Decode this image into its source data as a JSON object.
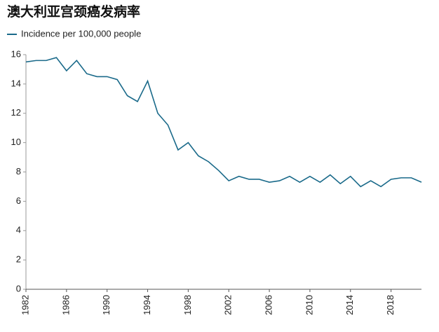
{
  "chart_data": {
    "type": "line",
    "title": "澳大利亚宫颈癌发病率",
    "x": [
      1982,
      1983,
      1984,
      1985,
      1986,
      1987,
      1988,
      1989,
      1990,
      1991,
      1992,
      1993,
      1994,
      1995,
      1996,
      1997,
      1998,
      1999,
      2000,
      2001,
      2002,
      2003,
      2004,
      2005,
      2006,
      2007,
      2008,
      2009,
      2010,
      2011,
      2012,
      2013,
      2014,
      2015,
      2016,
      2017,
      2018,
      2019,
      2020,
      2021
    ],
    "series": [
      {
        "name": "Incidence per 100,000 people",
        "color": "#1a6a8a",
        "values": [
          15.5,
          15.6,
          15.6,
          15.8,
          14.9,
          15.6,
          14.7,
          14.5,
          14.5,
          14.3,
          13.2,
          12.8,
          14.2,
          12.0,
          11.2,
          9.5,
          10.0,
          9.1,
          8.7,
          8.1,
          7.4,
          7.7,
          7.5,
          7.5,
          7.3,
          7.4,
          7.7,
          7.3,
          7.7,
          7.3,
          7.8,
          7.2,
          7.7,
          7.0,
          7.4,
          7.0,
          7.5,
          7.6,
          7.6,
          7.3
        ]
      }
    ],
    "xlim": [
      1982,
      2021
    ],
    "xticks": [
      1982,
      1986,
      1990,
      1994,
      1998,
      2002,
      2006,
      2010,
      2014,
      2018
    ],
    "ylim": [
      0,
      16
    ],
    "yticks": [
      0,
      2,
      4,
      6,
      8,
      10,
      12,
      14,
      16
    ],
    "legend": "top-left",
    "grid": false
  }
}
